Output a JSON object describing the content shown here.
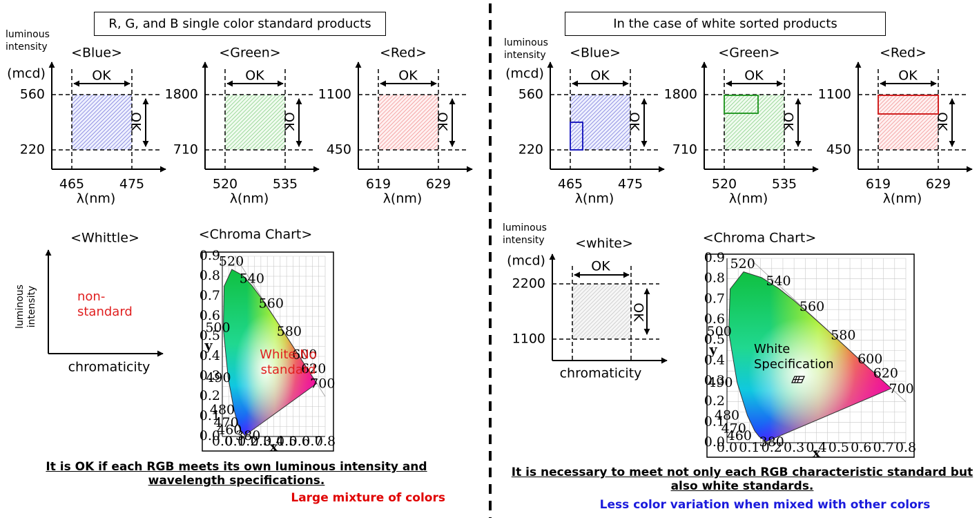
{
  "left": {
    "title": "R, G, and B single color standard products",
    "luminous_label": "luminous intensity",
    "unit": "(mcd)",
    "wavelength_label": "λ(nm)",
    "ok": "OK",
    "panels": [
      {
        "name": "<Blue>",
        "y_high": 560,
        "y_low": 220,
        "x_low": 465,
        "x_high": 475
      },
      {
        "name": "<Green>",
        "y_high": 1800,
        "y_low": 710,
        "x_low": 520,
        "x_high": 535
      },
      {
        "name": "<Red>",
        "y_high": 1100,
        "y_low": 450,
        "x_low": 619,
        "x_high": 629
      }
    ],
    "white_panel": {
      "name": "<Whittle>",
      "y_axis_label": "luminous intensity",
      "x_axis_label": "chromaticity",
      "note": "non-standard"
    },
    "chroma": {
      "name": "<Chroma Chart>",
      "note": "White No standard"
    },
    "summary": "It is OK if each RGB meets its own luminous intensity and wavelength specifications.",
    "remark": "Large mixture of colors"
  },
  "right": {
    "title": "In the case of white sorted products",
    "luminous_label": "luminous intensity",
    "unit": "(mcd)",
    "wavelength_label": "λ(nm)",
    "ok": "OK",
    "panels": [
      {
        "name": "<Blue>",
        "y_high": 560,
        "y_low": 220,
        "x_low": 465,
        "x_high": 475
      },
      {
        "name": "<Green>",
        "y_high": 1800,
        "y_low": 710,
        "x_low": 520,
        "x_high": 535
      },
      {
        "name": "<Red>",
        "y_high": 1100,
        "y_low": 450,
        "x_low": 619,
        "x_high": 629
      }
    ],
    "white_panel": {
      "name": "<white>",
      "y_axis_label": "luminous intensity",
      "unit": "(mcd)",
      "y_high": 2200,
      "y_low": 1100,
      "x_axis_label": "chromaticity"
    },
    "chroma": {
      "name": "<Chroma Chart>",
      "note": "White Specification"
    },
    "summary": "It is necessary to meet not only each RGB characteristic standard but also white standards.",
    "remark": "Less color variation when mixed with other colors"
  },
  "chroma_chart": {
    "x_label": "x",
    "y_label": "y",
    "xticks": [
      "0.0",
      "0.1",
      "0.2",
      "0.3",
      "0.4",
      "0.5",
      "0.6",
      "0.7",
      "0.8"
    ],
    "yticks": [
      "0.0",
      "0.1",
      "0.2",
      "0.3",
      "0.4",
      "0.5",
      "0.6",
      "0.7",
      "0.8",
      "0.9"
    ],
    "wavelengths": [
      "520",
      "540",
      "560",
      "580",
      "600",
      "620",
      "700",
      "500",
      "490",
      "480",
      "470",
      "460",
      "380"
    ]
  }
}
